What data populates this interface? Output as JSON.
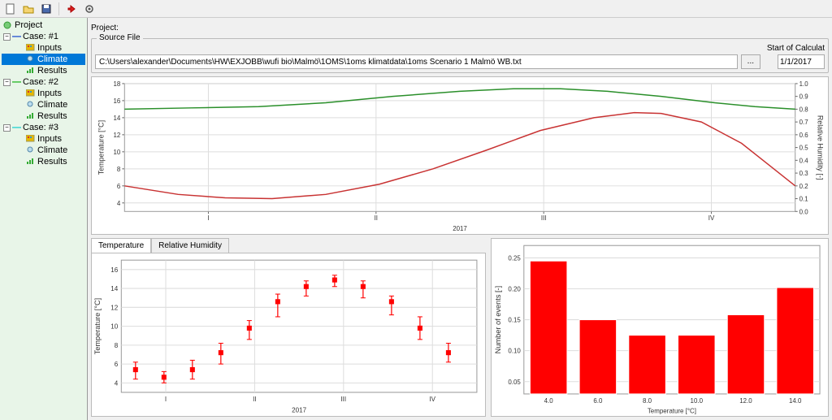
{
  "toolbar": {
    "icons": [
      "new",
      "open",
      "save",
      "sep",
      "run",
      "stop",
      "settings"
    ]
  },
  "tree": {
    "root": "Project",
    "cases": [
      {
        "label": "Case: #1",
        "color": "#0033cc",
        "children": [
          {
            "label": "Inputs",
            "icon": "inputs"
          },
          {
            "label": "Climate",
            "icon": "climate",
            "selected": true
          },
          {
            "label": "Results",
            "icon": "results"
          }
        ]
      },
      {
        "label": "Case: #2",
        "color": "#00aa00",
        "children": [
          {
            "label": "Inputs",
            "icon": "inputs"
          },
          {
            "label": "Climate",
            "icon": "climate"
          },
          {
            "label": "Results",
            "icon": "results"
          }
        ]
      },
      {
        "label": "Case: #3",
        "color": "#00cccc",
        "children": [
          {
            "label": "Inputs",
            "icon": "inputs"
          },
          {
            "label": "Climate",
            "icon": "climate"
          },
          {
            "label": "Results",
            "icon": "results"
          }
        ]
      }
    ]
  },
  "project_label": "Project:",
  "source": {
    "group_title": "Source File",
    "path": "C:\\Users\\alexander\\Documents\\HW\\EXJOBB\\wufi bio\\Malmö\\1OMS\\1oms klimatdata\\1oms Scenario 1 Malmö WB.txt",
    "browse": "...",
    "start_label": "Start of Calculat",
    "start_date": "1/1/2017"
  },
  "chart_top": {
    "y_left_label": "Temperature [°C]",
    "y_left_ticks": [
      4,
      6,
      8,
      10,
      12,
      14,
      16,
      18
    ],
    "y_left_lim": [
      3,
      18
    ],
    "y_right_label": "Relative Humidity [-]",
    "y_right_ticks": [
      0.0,
      0.1,
      0.2,
      0.3,
      0.4,
      0.5,
      0.6,
      0.7,
      0.8,
      0.9,
      1.0
    ],
    "y_right_lim": [
      0.0,
      1.0
    ],
    "x_ticks": [
      "I",
      "II",
      "III",
      "IV"
    ],
    "x_label": "2017",
    "temp_color": "#c83232",
    "humid_color": "#2a8f2a",
    "line_width": 1.5,
    "temp_curve": [
      [
        0,
        6.0
      ],
      [
        0.08,
        5.0
      ],
      [
        0.15,
        4.6
      ],
      [
        0.22,
        4.5
      ],
      [
        0.3,
        5.0
      ],
      [
        0.38,
        6.2
      ],
      [
        0.46,
        8.0
      ],
      [
        0.54,
        10.2
      ],
      [
        0.62,
        12.5
      ],
      [
        0.7,
        14.0
      ],
      [
        0.76,
        14.6
      ],
      [
        0.8,
        14.5
      ],
      [
        0.86,
        13.5
      ],
      [
        0.92,
        11.0
      ],
      [
        0.96,
        8.5
      ],
      [
        1.0,
        6.0
      ]
    ],
    "humid_curve": [
      [
        0,
        0.8
      ],
      [
        0.1,
        0.81
      ],
      [
        0.2,
        0.82
      ],
      [
        0.3,
        0.85
      ],
      [
        0.4,
        0.9
      ],
      [
        0.5,
        0.94
      ],
      [
        0.58,
        0.96
      ],
      [
        0.65,
        0.96
      ],
      [
        0.72,
        0.94
      ],
      [
        0.8,
        0.9
      ],
      [
        0.88,
        0.85
      ],
      [
        0.94,
        0.82
      ],
      [
        1.0,
        0.8
      ]
    ],
    "background": "#ffffff",
    "grid_color": "#dddddd"
  },
  "tabs": {
    "items": [
      "Temperature",
      "Relative Humidity"
    ],
    "active": 0
  },
  "chart_bl": {
    "type": "errorbar",
    "y_label": "Temperature [°C]",
    "y_ticks": [
      4,
      6,
      8,
      10,
      12,
      14,
      16
    ],
    "y_lim": [
      3,
      17
    ],
    "x_ticks": [
      "I",
      "II",
      "III",
      "IV"
    ],
    "x_label": "2017",
    "color": "#ff0000",
    "marker_size": 6,
    "points": [
      {
        "x": 0.04,
        "y": 5.4,
        "lo": 4.4,
        "hi": 6.2
      },
      {
        "x": 0.12,
        "y": 4.6,
        "lo": 4.0,
        "hi": 5.2
      },
      {
        "x": 0.2,
        "y": 5.4,
        "lo": 4.4,
        "hi": 6.4
      },
      {
        "x": 0.28,
        "y": 7.2,
        "lo": 6.0,
        "hi": 8.2
      },
      {
        "x": 0.36,
        "y": 9.8,
        "lo": 8.6,
        "hi": 10.6
      },
      {
        "x": 0.44,
        "y": 12.6,
        "lo": 11.0,
        "hi": 13.4
      },
      {
        "x": 0.52,
        "y": 14.2,
        "lo": 13.2,
        "hi": 14.8
      },
      {
        "x": 0.6,
        "y": 14.9,
        "lo": 14.2,
        "hi": 15.4
      },
      {
        "x": 0.68,
        "y": 14.2,
        "lo": 13.0,
        "hi": 14.8
      },
      {
        "x": 0.76,
        "y": 12.6,
        "lo": 11.2,
        "hi": 13.2
      },
      {
        "x": 0.84,
        "y": 9.8,
        "lo": 8.6,
        "hi": 11.0
      },
      {
        "x": 0.92,
        "y": 7.2,
        "lo": 6.2,
        "hi": 8.2
      }
    ]
  },
  "chart_br": {
    "type": "bar",
    "y_label": "Number of events [-]",
    "y_ticks": [
      0.05,
      0.1,
      0.15,
      0.2,
      0.25
    ],
    "y_lim": [
      0.03,
      0.27
    ],
    "x_label": "Temperature [°C]",
    "x_ticks": [
      4.0,
      6.0,
      8.0,
      10.0,
      12.0,
      14.0
    ],
    "color": "#ff0000",
    "bar_width": 0.75,
    "bars": [
      {
        "x": 4.0,
        "y": 0.245
      },
      {
        "x": 6.0,
        "y": 0.15
      },
      {
        "x": 8.0,
        "y": 0.125
      },
      {
        "x": 10.0,
        "y": 0.125
      },
      {
        "x": 12.0,
        "y": 0.158
      },
      {
        "x": 14.0,
        "y": 0.202
      }
    ]
  }
}
